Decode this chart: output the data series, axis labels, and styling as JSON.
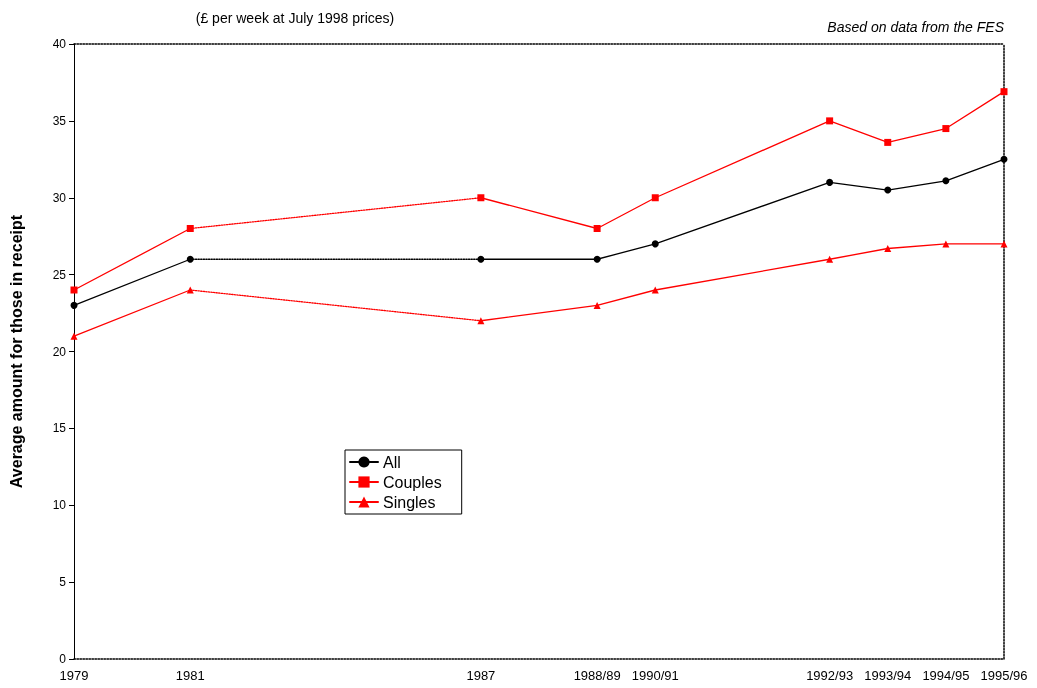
{
  "chart_data": {
    "type": "line",
    "subtitle": "(£ per week at July 1998 prices)",
    "annotations": [
      "Based on data from the FES"
    ],
    "ylabel": "Average amount for those in receipt",
    "categories": [
      "1979",
      null,
      "1981",
      null,
      null,
      null,
      null,
      "1987",
      null,
      "1988/89",
      "1990/91",
      null,
      null,
      "1992/93",
      "1993/94",
      "1994/95",
      "1995/96"
    ],
    "ylim": [
      0,
      40
    ],
    "yticks": [
      0,
      5,
      10,
      15,
      20,
      25,
      30,
      35,
      40
    ],
    "grid": false,
    "legend": "bottom left",
    "series": [
      {
        "name": "All",
        "color": "#000000",
        "marker": "circle",
        "line_style": "solid",
        "values": [
          23,
          null,
          26,
          null,
          null,
          null,
          null,
          null,
          null,
          null,
          null,
          null,
          null,
          null,
          null,
          null,
          null
        ]
      },
      {
        "color": "#000000",
        "marker": "circle",
        "line_style": "solid",
        "values": [
          null,
          null,
          null,
          null,
          null,
          null,
          null,
          26,
          null,
          26,
          27,
          null,
          null,
          31,
          30.5,
          31.1,
          32.5
        ]
      },
      {
        "color": "#000000",
        "line_style": "dotted",
        "values": [
          null,
          null,
          26,
          null,
          null,
          null,
          null,
          26,
          null,
          null,
          null,
          null,
          null,
          null,
          null,
          null,
          null
        ]
      },
      {
        "name": "Couples",
        "color": "#ff0000",
        "marker": "square",
        "line_style": "solid",
        "values": [
          24,
          null,
          28,
          null,
          null,
          null,
          null,
          null,
          null,
          null,
          null,
          null,
          null,
          null,
          null,
          null,
          null
        ]
      },
      {
        "color": "#ff0000",
        "marker": "square",
        "line_style": "solid",
        "values": [
          null,
          null,
          null,
          null,
          null,
          null,
          null,
          30,
          null,
          28,
          30,
          null,
          null,
          35,
          33.6,
          34.5,
          36.9
        ]
      },
      {
        "color": "#ff0000",
        "line_style": "dotted",
        "values": [
          null,
          null,
          28,
          null,
          null,
          null,
          null,
          30,
          null,
          null,
          null,
          null,
          null,
          null,
          null,
          null,
          null
        ]
      },
      {
        "name": "Singles",
        "color": "#ff0000",
        "marker": "triangle",
        "line_style": "solid",
        "values": [
          21,
          null,
          24,
          null,
          null,
          null,
          null,
          null,
          null,
          null,
          null,
          null,
          null,
          null,
          null,
          null,
          null
        ]
      },
      {
        "color": "#ff0000",
        "marker": "triangle",
        "line_style": "solid",
        "values": [
          null,
          null,
          null,
          null,
          null,
          null,
          null,
          22,
          null,
          23,
          24,
          null,
          null,
          26,
          26.7,
          27,
          27
        ]
      },
      {
        "color": "#ff0000",
        "line_style": "dotted",
        "values": [
          null,
          null,
          24,
          null,
          null,
          null,
          null,
          22,
          null,
          null,
          null,
          null,
          null,
          null,
          null,
          null,
          null
        ]
      }
    ]
  }
}
